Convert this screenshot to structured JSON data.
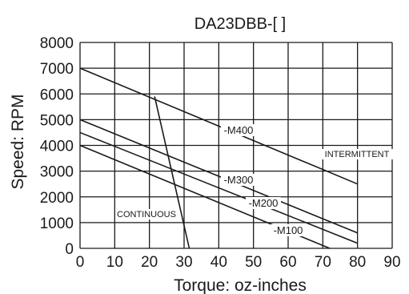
{
  "chart_data": {
    "type": "line",
    "title": "DA23DBB-[ ]",
    "xlabel": "Torque: oz-inches",
    "ylabel": "Speed: RPM",
    "xlim": [
      0,
      90
    ],
    "ylim": [
      0,
      8000
    ],
    "x_ticks": [
      "0",
      "10",
      "20",
      "30",
      "40",
      "50",
      "60",
      "70",
      "80",
      "90"
    ],
    "y_ticks": [
      "0",
      "1000",
      "2000",
      "3000",
      "4000",
      "5000",
      "6000",
      "7000",
      "8000"
    ],
    "grid": true,
    "series": [
      {
        "name": "-M400",
        "points": [
          [
            0,
            7000
          ],
          [
            80,
            2500
          ]
        ]
      },
      {
        "name": "-M300",
        "points": [
          [
            0,
            5000
          ],
          [
            80,
            600
          ]
        ]
      },
      {
        "name": "-M200",
        "points": [
          [
            0,
            4500
          ],
          [
            80,
            200
          ]
        ]
      },
      {
        "name": "-M100",
        "points": [
          [
            0,
            4000
          ],
          [
            72,
            0
          ]
        ]
      }
    ],
    "boundary": {
      "points": [
        [
          21.5,
          5900
        ],
        [
          31.5,
          0
        ]
      ]
    },
    "annotations": [
      "INTERMITTENT",
      "CONTINUOUS"
    ],
    "colors": {
      "line": "#1a1a1a",
      "background": "#ffffff"
    }
  }
}
